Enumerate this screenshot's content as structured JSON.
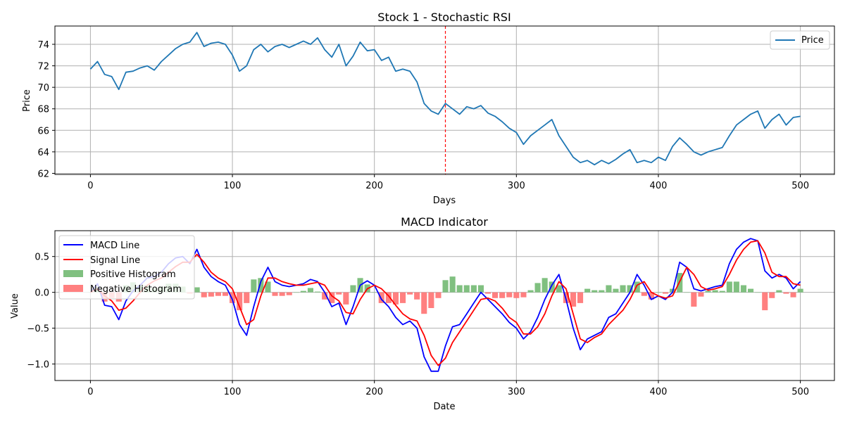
{
  "chart_data": [
    {
      "type": "line",
      "title": "Stock 1 - Stochastic RSI",
      "xlabel": "Days",
      "ylabel": "Price",
      "xlim": [
        -25,
        524
      ],
      "ylim": [
        61.9,
        75.7
      ],
      "xticks": [
        0,
        100,
        200,
        300,
        400,
        500
      ],
      "yticks": [
        62,
        64,
        66,
        68,
        70,
        72,
        74
      ],
      "grid": true,
      "legend_position": "top-right",
      "colors": {
        "price": "#1f77b4",
        "marker": "#ff0000"
      },
      "vertical_marker_x": 250,
      "series": [
        {
          "name": "Price",
          "x": [
            0,
            5,
            10,
            15,
            20,
            25,
            30,
            35,
            40,
            45,
            50,
            55,
            60,
            65,
            70,
            75,
            80,
            85,
            90,
            95,
            100,
            105,
            110,
            115,
            120,
            125,
            130,
            135,
            140,
            145,
            150,
            155,
            160,
            165,
            170,
            175,
            180,
            185,
            190,
            195,
            200,
            205,
            210,
            215,
            220,
            225,
            230,
            235,
            240,
            245,
            250,
            255,
            260,
            265,
            270,
            275,
            280,
            285,
            290,
            295,
            300,
            305,
            310,
            315,
            320,
            325,
            330,
            335,
            340,
            345,
            350,
            355,
            360,
            365,
            370,
            375,
            380,
            385,
            390,
            395,
            400,
            405,
            410,
            415,
            420,
            425,
            430,
            435,
            440,
            445,
            450,
            455,
            460,
            465,
            470,
            475,
            480,
            485,
            490,
            495,
            500
          ],
          "values": [
            71.7,
            72.4,
            71.2,
            71.0,
            69.8,
            71.4,
            71.5,
            71.8,
            72.0,
            71.6,
            72.4,
            73.0,
            73.6,
            74.0,
            74.2,
            75.1,
            73.8,
            74.1,
            74.2,
            74.0,
            73.0,
            71.5,
            72.0,
            73.5,
            74.0,
            73.3,
            73.8,
            74.0,
            73.7,
            74.0,
            74.3,
            74.0,
            74.6,
            73.5,
            72.8,
            74.0,
            72.0,
            72.9,
            74.2,
            73.4,
            73.5,
            72.5,
            72.8,
            71.5,
            71.7,
            71.5,
            70.5,
            68.5,
            67.8,
            67.5,
            68.5,
            68.0,
            67.5,
            68.2,
            68.0,
            68.3,
            67.6,
            67.3,
            66.8,
            66.2,
            65.8,
            64.7,
            65.5,
            66.0,
            66.5,
            67.0,
            65.5,
            64.5,
            63.5,
            63.0,
            63.2,
            62.8,
            63.2,
            62.9,
            63.3,
            63.8,
            64.2,
            63.0,
            63.2,
            63.0,
            63.5,
            63.2,
            64.5,
            65.3,
            64.7,
            64.0,
            63.7,
            64.0,
            64.2,
            64.4,
            65.5,
            66.5,
            67.0,
            67.5,
            67.8,
            66.2,
            67.0,
            67.5,
            66.5,
            67.2,
            67.3
          ]
        }
      ]
    },
    {
      "type": "line",
      "title": "MACD Indicator",
      "xlabel": "Date",
      "ylabel": "Value",
      "xlim": [
        -25,
        524
      ],
      "ylim": [
        -1.23,
        0.86
      ],
      "xticks": [
        0,
        100,
        200,
        300,
        400,
        500
      ],
      "yticks": [
        -1.0,
        -0.5,
        0.0,
        0.5
      ],
      "ytick_labels": [
        "−1.0",
        "−0.5",
        "0.0",
        "0.5"
      ],
      "grid": true,
      "legend_position": "top-left",
      "colors": {
        "macd": "#0000ff",
        "signal": "#ff0000",
        "positive": "#80c080",
        "negative": "#ff8080"
      },
      "legend": [
        "MACD Line",
        "Signal Line",
        "Positive Histogram",
        "Negative Histogram"
      ],
      "x": [
        0,
        5,
        10,
        15,
        20,
        25,
        30,
        35,
        40,
        45,
        50,
        55,
        60,
        65,
        70,
        75,
        80,
        85,
        90,
        95,
        100,
        105,
        110,
        115,
        120,
        125,
        130,
        135,
        140,
        145,
        150,
        155,
        160,
        165,
        170,
        175,
        180,
        185,
        190,
        195,
        200,
        205,
        210,
        215,
        220,
        225,
        230,
        235,
        240,
        245,
        250,
        255,
        260,
        265,
        270,
        275,
        280,
        285,
        290,
        295,
        300,
        305,
        310,
        315,
        320,
        325,
        330,
        335,
        340,
        345,
        350,
        355,
        360,
        365,
        370,
        375,
        380,
        385,
        390,
        395,
        400,
        405,
        410,
        415,
        420,
        425,
        430,
        435,
        440,
        445,
        450,
        455,
        460,
        465,
        470,
        475,
        480,
        485,
        490,
        495,
        500
      ],
      "series": [
        {
          "name": "MACD Line",
          "values": [
            0.0,
            0.12,
            -0.18,
            -0.2,
            -0.38,
            -0.12,
            0.02,
            0.1,
            0.2,
            0.22,
            0.28,
            0.4,
            0.48,
            0.5,
            0.4,
            0.6,
            0.35,
            0.22,
            0.15,
            0.1,
            -0.1,
            -0.45,
            -0.6,
            -0.2,
            0.15,
            0.35,
            0.15,
            0.1,
            0.08,
            0.1,
            0.12,
            0.18,
            0.15,
            0.0,
            -0.2,
            -0.15,
            -0.45,
            -0.2,
            0.1,
            0.16,
            0.1,
            -0.1,
            -0.2,
            -0.35,
            -0.45,
            -0.4,
            -0.5,
            -0.9,
            -1.1,
            -1.1,
            -0.75,
            -0.48,
            -0.45,
            -0.3,
            -0.15,
            0.0,
            -0.1,
            -0.2,
            -0.3,
            -0.42,
            -0.5,
            -0.65,
            -0.55,
            -0.35,
            -0.1,
            0.1,
            0.25,
            -0.1,
            -0.5,
            -0.8,
            -0.65,
            -0.6,
            -0.55,
            -0.35,
            -0.3,
            -0.15,
            0.0,
            0.25,
            0.1,
            -0.1,
            -0.05,
            -0.1,
            0.0,
            0.42,
            0.35,
            0.05,
            0.02,
            0.05,
            0.08,
            0.1,
            0.4,
            0.6,
            0.7,
            0.75,
            0.72,
            0.3,
            0.2,
            0.25,
            0.2,
            0.05,
            0.15
          ]
        },
        {
          "name": "Signal Line",
          "values": [
            0.0,
            0.05,
            -0.05,
            -0.12,
            -0.25,
            -0.22,
            -0.12,
            0.0,
            0.1,
            0.16,
            0.2,
            0.28,
            0.36,
            0.42,
            0.42,
            0.53,
            0.42,
            0.28,
            0.2,
            0.15,
            0.05,
            -0.2,
            -0.45,
            -0.38,
            -0.05,
            0.2,
            0.2,
            0.15,
            0.12,
            0.1,
            0.1,
            0.12,
            0.14,
            0.1,
            -0.05,
            -0.12,
            -0.28,
            -0.3,
            -0.1,
            0.05,
            0.1,
            0.05,
            -0.05,
            -0.18,
            -0.3,
            -0.37,
            -0.4,
            -0.6,
            -0.88,
            -1.02,
            -0.92,
            -0.7,
            -0.55,
            -0.4,
            -0.25,
            -0.1,
            -0.08,
            -0.12,
            -0.22,
            -0.35,
            -0.42,
            -0.58,
            -0.58,
            -0.48,
            -0.3,
            -0.05,
            0.15,
            0.05,
            -0.3,
            -0.65,
            -0.7,
            -0.63,
            -0.58,
            -0.45,
            -0.35,
            -0.25,
            -0.1,
            0.1,
            0.15,
            0.0,
            -0.05,
            -0.08,
            -0.05,
            0.15,
            0.35,
            0.25,
            0.08,
            0.03,
            0.05,
            0.08,
            0.25,
            0.45,
            0.6,
            0.7,
            0.72,
            0.55,
            0.28,
            0.22,
            0.22,
            0.12,
            0.1
          ]
        },
        {
          "name": "Histogram",
          "values": [
            0.0,
            0.07,
            -0.13,
            -0.08,
            -0.13,
            0.1,
            0.14,
            0.1,
            0.1,
            0.06,
            0.08,
            0.12,
            0.12,
            0.08,
            -0.02,
            0.07,
            -0.07,
            -0.06,
            -0.05,
            -0.05,
            -0.15,
            -0.25,
            -0.15,
            0.18,
            0.2,
            0.15,
            -0.05,
            -0.05,
            -0.04,
            0.0,
            0.02,
            0.06,
            0.01,
            -0.1,
            -0.15,
            -0.03,
            -0.17,
            0.1,
            0.2,
            0.11,
            0.0,
            -0.15,
            -0.15,
            -0.17,
            -0.15,
            -0.03,
            -0.1,
            -0.3,
            -0.22,
            -0.08,
            0.17,
            0.22,
            0.1,
            0.1,
            0.1,
            0.1,
            -0.02,
            -0.08,
            -0.08,
            -0.07,
            -0.08,
            -0.07,
            0.03,
            0.13,
            0.2,
            0.15,
            0.1,
            -0.15,
            -0.2,
            -0.15,
            0.05,
            0.03,
            0.03,
            0.1,
            0.05,
            0.1,
            0.1,
            0.15,
            -0.05,
            -0.1,
            0.0,
            -0.02,
            0.05,
            0.27,
            0.0,
            -0.2,
            -0.06,
            0.02,
            0.03,
            0.02,
            0.15,
            0.15,
            0.1,
            0.05,
            0.0,
            -0.25,
            -0.08,
            0.03,
            -0.02,
            -0.07,
            0.05
          ]
        }
      ]
    }
  ]
}
